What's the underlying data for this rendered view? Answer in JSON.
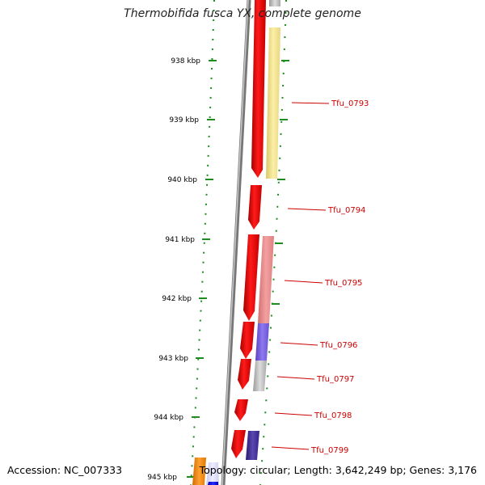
{
  "title": "Thermobifida fusca YX, complete genome",
  "accession": "Accession: NC_007333",
  "summary": "Topology: circular; Length: 3,642,249 bp; Genes: 3,176",
  "colors": {
    "backbone": "#8a8a8a",
    "tick_dots": "#1e8c1e",
    "cds": "#ee0000",
    "label": "#cc0000"
  },
  "scale_ticks": [
    "938 kbp",
    "939 kbp",
    "940 kbp",
    "941 kbp",
    "942 kbp",
    "943 kbp",
    "944 kbp",
    "945 kbp"
  ],
  "genes": [
    "Tfu_0793",
    "Tfu_0794",
    "Tfu_0795",
    "Tfu_0796",
    "Tfu_0797",
    "Tfu_0798",
    "Tfu_0799"
  ]
}
